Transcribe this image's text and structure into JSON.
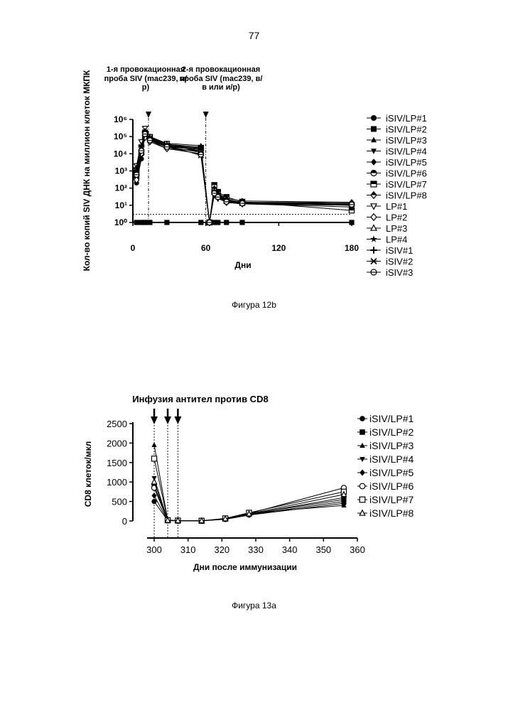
{
  "page_number": "77",
  "charts": [
    {
      "caption": "Фигура 12b",
      "ylabel": "Кол-во копий SIV ДНК на миллион клеток МКПК",
      "xlabel": "Дни",
      "annotations": [
        {
          "text": "1-я провокационная проба SIV (mac239, и/р)"
        },
        {
          "text": "2-я провокационная проба SIV (mac239, в/в или и/р)"
        }
      ]
    },
    {
      "caption": "Фигура 13а",
      "title": "Инфузия антител против CD8",
      "ylabel": "CD8 клеток/мкл",
      "xlabel": "Дни после иммунизации"
    }
  ],
  "chart_data": [
    {
      "type": "line",
      "yscale": "log",
      "ylim": [
        1,
        1000000
      ],
      "xlim": [
        0,
        180
      ],
      "x_ticks": [
        0,
        60,
        120,
        180
      ],
      "y_ticks": [
        "10⁰",
        "10¹",
        "10²",
        "10³",
        "10⁴",
        "10⁵",
        "10⁶"
      ],
      "x": [
        3,
        7,
        10,
        14,
        28,
        56,
        63,
        67,
        70,
        77,
        90,
        180
      ],
      "event_days": [
        0,
        60
      ],
      "threshold": 3,
      "series": [
        {
          "name": "iSIV/LP#1",
          "marker": "circle-filled",
          "values": [
            200,
            5000,
            150000,
            90000,
            30000,
            20000,
            1,
            50,
            30,
            20,
            15,
            10
          ]
        },
        {
          "name": "iSIV/LP#2",
          "marker": "square-filled",
          "values": [
            1,
            1,
            1,
            1,
            1,
            1,
            1,
            1,
            1,
            1,
            1,
            1
          ]
        },
        {
          "name": "iSIV/LP#3",
          "marker": "triangle-up-filled",
          "values": [
            600,
            15000,
            200000,
            80000,
            40000,
            30000,
            1,
            80,
            40,
            20,
            15,
            12
          ]
        },
        {
          "name": "iSIV/LP#4",
          "marker": "triangle-down-filled",
          "values": [
            300,
            8000,
            100000,
            60000,
            20000,
            15000,
            1,
            60,
            30,
            15,
            12,
            10
          ]
        },
        {
          "name": "iSIV/LP#5",
          "marker": "diamond-filled",
          "values": [
            1000,
            20000,
            180000,
            100000,
            35000,
            25000,
            1,
            100,
            50,
            25,
            18,
            15
          ]
        },
        {
          "name": "iSIV/LP#6",
          "marker": "circle-half",
          "values": [
            400,
            10000,
            120000,
            70000,
            25000,
            18000,
            1,
            70,
            35,
            18,
            14,
            12
          ]
        },
        {
          "name": "iSIV/LP#7",
          "marker": "square-half",
          "values": [
            800,
            12000,
            150000,
            90000,
            30000,
            22000,
            1,
            150,
            60,
            30,
            16,
            5
          ]
        },
        {
          "name": "iSIV/LP#8",
          "marker": "diamond-half",
          "values": [
            500,
            9000,
            110000,
            65000,
            28000,
            20000,
            1,
            90,
            45,
            22,
            15,
            14
          ]
        },
        {
          "name": "LP#1",
          "marker": "triangle-down-open",
          "values": [
            2000,
            50000,
            300000,
            100000,
            40000,
            12000,
            1,
            40,
            25,
            15,
            12,
            8
          ]
        },
        {
          "name": "LP#2",
          "marker": "diamond-open",
          "values": [
            300,
            10000,
            90000,
            50000,
            20000,
            10000,
            1,
            50,
            30,
            15,
            12,
            10
          ]
        },
        {
          "name": "LP#3",
          "marker": "triangle-up-open",
          "values": [
            700,
            20000,
            160000,
            80000,
            30000,
            15000,
            1,
            60,
            35,
            18,
            14,
            12
          ]
        },
        {
          "name": "LP#4",
          "marker": "star",
          "values": [
            500,
            15000,
            120000,
            60000,
            25000,
            12000,
            1,
            45,
            30,
            16,
            13,
            10
          ]
        },
        {
          "name": "iSIV#1",
          "marker": "plus",
          "values": [
            1500,
            30000,
            200000,
            90000,
            35000,
            20000,
            1,
            70,
            40,
            20,
            15,
            12
          ]
        },
        {
          "name": "iSIV#2",
          "marker": "x-star",
          "values": [
            1000,
            25000,
            180000,
            70000,
            30000,
            8000,
            1,
            55,
            32,
            17,
            13,
            11
          ]
        },
        {
          "name": "iSIV#3",
          "marker": "circle-line",
          "values": [
            600,
            15000,
            140000,
            60000,
            25000,
            9000,
            1,
            50,
            30,
            16,
            13,
            11
          ]
        }
      ]
    },
    {
      "type": "line",
      "xlim": [
        298,
        360
      ],
      "ylim": [
        0,
        2500
      ],
      "x_ticks": [
        300,
        310,
        320,
        330,
        340,
        350,
        360
      ],
      "y_ticks": [
        0,
        500,
        1000,
        1500,
        2000,
        2500
      ],
      "x": [
        300,
        304,
        307,
        314,
        321,
        328,
        356
      ],
      "infusion_days": [
        300,
        304,
        307
      ],
      "series": [
        {
          "name": "iSIV/LP#1",
          "marker": "circle-filled",
          "values": [
            500,
            10,
            5,
            5,
            40,
            150,
            450
          ]
        },
        {
          "name": "iSIV/LP#2",
          "marker": "square-filled",
          "values": [
            900,
            15,
            8,
            5,
            50,
            180,
            550
          ]
        },
        {
          "name": "iSIV/LP#3",
          "marker": "triangle-up-filled",
          "values": [
            1950,
            20,
            10,
            5,
            60,
            200,
            400
          ]
        },
        {
          "name": "iSIV/LP#4",
          "marker": "triangle-down-filled",
          "values": [
            1100,
            12,
            6,
            5,
            55,
            170,
            600
          ]
        },
        {
          "name": "iSIV/LP#5",
          "marker": "diamond-filled",
          "values": [
            650,
            10,
            5,
            5,
            45,
            160,
            500
          ]
        },
        {
          "name": "iSIV/LP#6",
          "marker": "circle-open",
          "values": [
            850,
            12,
            7,
            5,
            50,
            190,
            850
          ]
        },
        {
          "name": "iSIV/LP#7",
          "marker": "square-open",
          "values": [
            1600,
            18,
            9,
            5,
            65,
            210,
            750
          ]
        },
        {
          "name": "iSIV/LP#8",
          "marker": "triangle-up-open",
          "values": [
            1000,
            14,
            8,
            5,
            55,
            180,
            680
          ]
        }
      ]
    }
  ]
}
